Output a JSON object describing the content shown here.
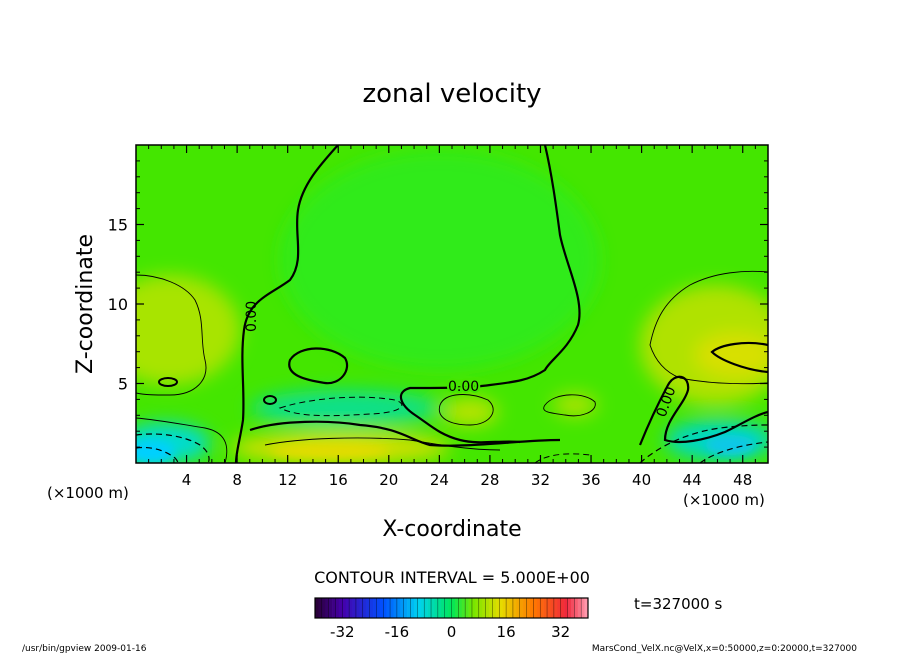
{
  "chart_data": {
    "type": "heatmap",
    "title": "zonal velocity",
    "xlabel": "X-coordinate",
    "ylabel": "Z-coordinate",
    "x_unit": "(×1000 m)",
    "y_unit": "(×1000 m)",
    "xlim": [
      0,
      50
    ],
    "ylim": [
      0,
      20
    ],
    "x_ticks": [
      4,
      8,
      12,
      16,
      20,
      24,
      28,
      32,
      36,
      40,
      44,
      48
    ],
    "y_ticks": [
      5,
      10,
      15
    ],
    "contour_interval_text": "CONTOUR INTERVAL = 5.000E+00",
    "contour_labels": [
      "0.00",
      "0.00",
      "0.00"
    ],
    "colorbar": {
      "range": [
        -40,
        40
      ],
      "ticks": [
        -32,
        -16,
        0,
        16,
        32
      ]
    },
    "time_text": "t=327000 s",
    "footer_left": "/usr/bin/gpview  2009-01-16",
    "footer_right": "MarsCond_VelX.nc@VelX,x=0:50000,z=0:20000,t=327000",
    "field_features": [
      {
        "kind": "jet",
        "x_center": 18,
        "z_center": 3.8,
        "value": -6
      },
      {
        "kind": "surface-shear",
        "x_center": 2,
        "z_center": 0.5,
        "value": -18
      },
      {
        "kind": "surface-shear",
        "x_center": 46,
        "z_center": 1.5,
        "value": -14
      },
      {
        "kind": "surface-jet",
        "x_center": 18,
        "z_center": 1.2,
        "value": 10
      },
      {
        "kind": "upper-lobe",
        "x_center": 3,
        "z_center": 8,
        "value": 7
      },
      {
        "kind": "upper-lobe",
        "x_center": 46,
        "z_center": 7,
        "value": 9
      },
      {
        "kind": "blob",
        "x_center": 26,
        "z_center": 3,
        "value": 7
      },
      {
        "kind": "blob",
        "x_center": 34,
        "z_center": 3.5,
        "value": 6
      }
    ]
  }
}
